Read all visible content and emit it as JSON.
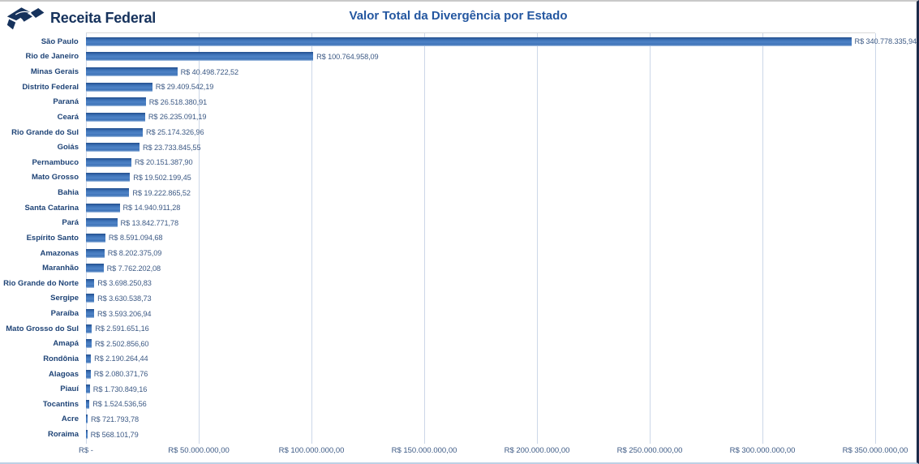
{
  "header": {
    "logo_text": "Receita Federal",
    "title": "Valor Total da Divergência por Estado"
  },
  "colors": {
    "brand_navy": "#16325c",
    "title_blue": "#2457a0",
    "bar_blue": "#3e73b8",
    "gridline": "#ccd7e8",
    "category_label": "#1e4376",
    "value_label": "#3d5a85"
  },
  "chart_data": {
    "type": "bar",
    "orientation": "horizontal",
    "title": "Valor Total da Divergência por Estado",
    "grid": true,
    "categories": [
      "São Paulo",
      "Rio de Janeiro",
      "Minas Gerais",
      "Distrito Federal",
      "Paraná",
      "Ceará",
      "Rio Grande do Sul",
      "Goiás",
      "Pernambuco",
      "Mato Grosso",
      "Bahia",
      "Santa Catarina",
      "Pará",
      "Espírito Santo",
      "Amazonas",
      "Maranhão",
      "Rio Grande do Norte",
      "Sergipe",
      "Paraíba",
      "Mato Grosso do Sul",
      "Amapá",
      "Rondônia",
      "Alagoas",
      "Piauí",
      "Tocantins",
      "Acre",
      "Roraima"
    ],
    "values": [
      340778335.94,
      100764958.09,
      40498722.52,
      29409542.19,
      26518380.91,
      26235091.19,
      25174326.96,
      23733845.55,
      20151387.9,
      19502199.45,
      19222865.52,
      14940911.28,
      13842771.78,
      8591094.68,
      8202375.09,
      7762202.08,
      3698250.83,
      3630538.73,
      3593206.94,
      2591651.16,
      2502856.6,
      2190264.44,
      2080371.76,
      1730849.16,
      1524536.56,
      721793.78,
      568101.79
    ],
    "value_labels": [
      "R$ 340.778.335,94",
      "R$ 100.764.958,09",
      "R$ 40.498.722,52",
      "R$ 29.409.542,19",
      "R$ 26.518.380,91",
      "R$ 26.235.091,19",
      "R$ 25.174.326,96",
      "R$ 23.733.845,55",
      "R$ 20.151.387,90",
      "R$ 19.502.199,45",
      "R$ 19.222.865,52",
      "R$ 14.940.911,28",
      "R$ 13.842.771,78",
      "R$ 8.591.094,68",
      "R$ 8.202.375,09",
      "R$ 7.762.202,08",
      "R$ 3.698.250,83",
      "R$ 3.630.538,73",
      "R$ 3.593.206,94",
      "R$ 2.591.651,16",
      "R$ 2.502.856,60",
      "R$ 2.190.264,44",
      "R$ 2.080.371,76",
      "R$ 1.730.849,16",
      "R$ 1.524.536,56",
      "R$ 721.793,78",
      "R$ 568.101,79"
    ],
    "x_axis": {
      "min": 0,
      "max": 350000000,
      "step": 50000000,
      "tick_labels": [
        "R$ -",
        "R$ 50.000.000,00",
        "R$ 100.000.000,00",
        "R$ 150.000.000,00",
        "R$ 200.000.000,00",
        "R$ 250.000.000,00",
        "R$ 300.000.000,00",
        "R$ 350.000.000,00"
      ]
    }
  }
}
